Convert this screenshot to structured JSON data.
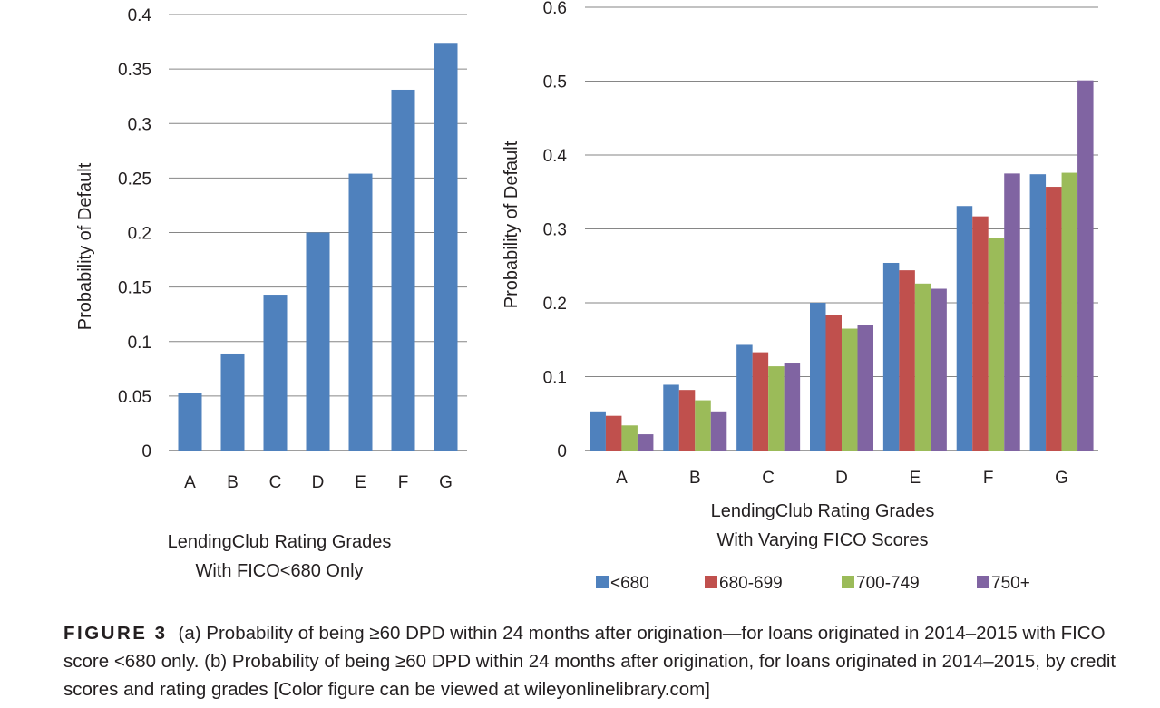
{
  "chart_data": [
    {
      "type": "bar",
      "categories": [
        "A",
        "B",
        "C",
        "D",
        "E",
        "F",
        "G"
      ],
      "values": [
        0.053,
        0.089,
        0.143,
        0.2,
        0.254,
        0.331,
        0.374
      ],
      "ylim": [
        0,
        0.4
      ],
      "yticks": [
        "0",
        "0.05",
        "0.1",
        "0.15",
        "0.2",
        "0.25",
        "0.3",
        "0.35",
        "0.4"
      ],
      "ylabel": "Probability of Default",
      "xlabel": [
        "LendingClub Rating Grades",
        "With FICO<680 Only"
      ],
      "grid": true,
      "color": "#4f81bd"
    },
    {
      "type": "bar",
      "categories": [
        "A",
        "B",
        "C",
        "D",
        "E",
        "F",
        "G"
      ],
      "series": [
        {
          "name": "<680",
          "values": [
            0.053,
            0.089,
            0.143,
            0.2,
            0.254,
            0.331,
            0.374
          ],
          "color": "#4f81bd"
        },
        {
          "name": "680-699",
          "values": [
            0.047,
            0.082,
            0.133,
            0.184,
            0.244,
            0.317,
            0.357
          ],
          "color": "#c0504d"
        },
        {
          "name": "700-749",
          "values": [
            0.034,
            0.068,
            0.114,
            0.165,
            0.226,
            0.288,
            0.376
          ],
          "color": "#9bbb59"
        },
        {
          "name": "750+",
          "values": [
            0.022,
            0.053,
            0.119,
            0.17,
            0.219,
            0.375,
            0.501
          ],
          "color": "#8064a2"
        }
      ],
      "ylim": [
        0,
        0.6
      ],
      "yticks": [
        "0",
        "0.1",
        "0.2",
        "0.3",
        "0.4",
        "0.5",
        "0.6"
      ],
      "ylabel": "Probability of Default",
      "xlabel": [
        "LendingClub Rating Grades",
        "With Varying FICO Scores"
      ],
      "legend_position": "bottom",
      "grid": true
    }
  ],
  "caption": {
    "label": "FIGURE 3",
    "text": "(a) Probability of being ≥60 DPD within 24 months after origination—for loans originated in 2014–2015 with FICO score <680 only. (b) Probability of being ≥60 DPD within 24 months after origination, for loans originated in 2014–2015, by credit scores and rating grades [Color figure can be viewed at wileyonlinelibrary.com]"
  }
}
